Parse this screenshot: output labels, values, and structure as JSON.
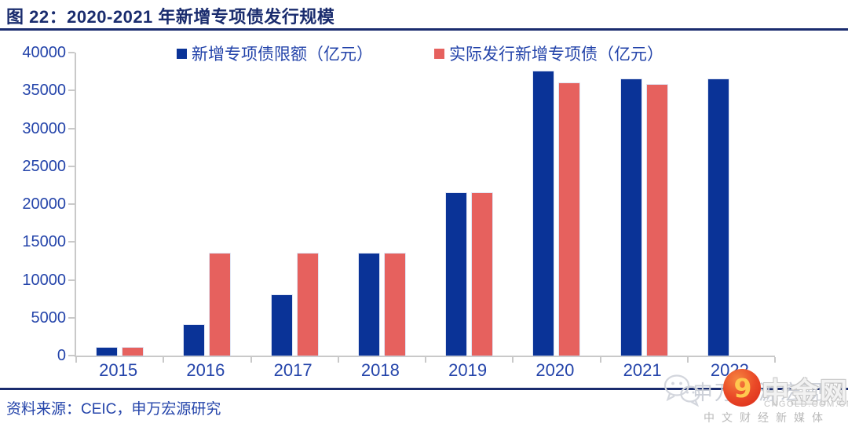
{
  "header": {
    "title": "图 22：2020-2021 年新增专项债发行规模"
  },
  "chart_data": {
    "type": "bar",
    "title": "2020-2021 年新增专项债发行规模",
    "categories": [
      "2015",
      "2016",
      "2017",
      "2018",
      "2019",
      "2020",
      "2021",
      "2022"
    ],
    "series": [
      {
        "name": "新增专项债限额（亿元）",
        "color": "#0a3397",
        "values": [
          1000,
          4000,
          8000,
          13500,
          21500,
          37500,
          36500,
          36500
        ]
      },
      {
        "name": "实际发行新增专项债（亿元）",
        "color": "#e6615e",
        "values": [
          1000,
          13500,
          13500,
          13500,
          21500,
          36000,
          35800,
          null
        ]
      }
    ],
    "xlabel": "",
    "ylabel": "",
    "ylim": [
      0,
      40000
    ],
    "yticks": [
      0,
      5000,
      10000,
      15000,
      20000,
      25000,
      30000,
      35000,
      40000
    ],
    "grid": false,
    "legend_position": "top"
  },
  "footer": {
    "source": "资料来源：CEIC，申万宏源研究"
  },
  "watermark": {
    "behind_text": "申万宏源宏观",
    "brand": "中金网",
    "domain": "CNGOLD.COM.CN",
    "tagline": "中文财经新媒体"
  },
  "colors": {
    "title_navy": "#1a2c6e",
    "text_blue": "#2444aa",
    "axis_gray": "#c9c9c9",
    "bar_blue": "#0a3397",
    "bar_red": "#e6615e",
    "logo_red": "#e8432d",
    "logo_gold": "#ffc94f",
    "watermark_gray": "#ccd0d8"
  }
}
